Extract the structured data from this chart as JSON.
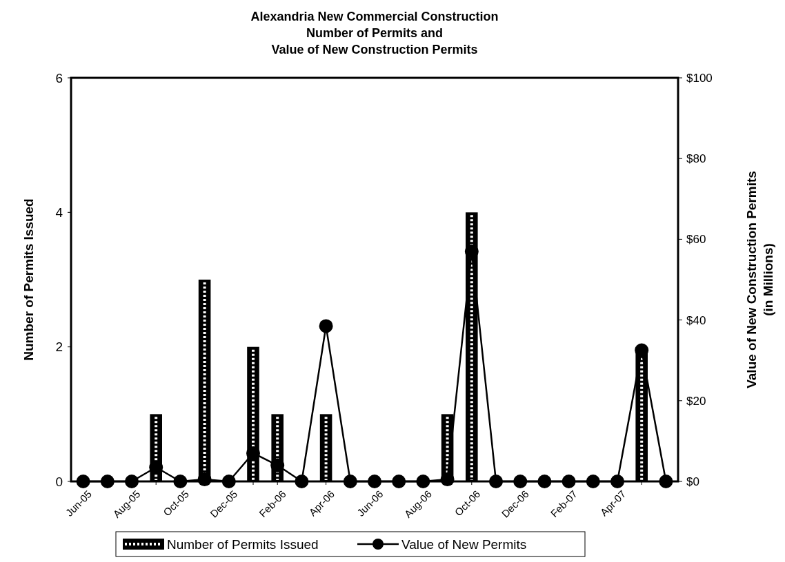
{
  "chart_data": {
    "type": "bar",
    "title": "Alexandria New Commercial Construction\nNumber of Permits and\nValue of New Construction Permits",
    "ylabel": "Number of Permits Issued",
    "y2label": "Value of New Construction Permits\n(in Millions)",
    "categories": [
      "Jun-05",
      null,
      "Aug-05",
      null,
      "Oct-05",
      null,
      "Dec-05",
      null,
      "Feb-06",
      null,
      "Apr-06",
      null,
      "Jun-06",
      null,
      "Aug-06",
      null,
      "Oct-06",
      null,
      "Dec-06",
      null,
      "Feb-07",
      null,
      "Apr-07",
      null,
      null
    ],
    "series": [
      {
        "name": "Number of Permits Issued",
        "color": "#000000",
        "values": [
          0,
          0,
          0,
          1,
          0,
          3,
          0,
          2,
          1,
          0,
          1,
          0,
          0,
          0,
          0,
          1,
          4,
          0,
          0,
          0,
          0,
          0,
          0,
          2,
          0
        ]
      },
      {
        "name": "Value of New Permits",
        "type": "line",
        "axis": "y2",
        "color": "#000000",
        "marker": "circle",
        "values": [
          0,
          0,
          0,
          3.5,
          0,
          0.5,
          0,
          7,
          4,
          0,
          38.5,
          0,
          0,
          0,
          0,
          0.5,
          57,
          0,
          0,
          0,
          0,
          0,
          0,
          32.5,
          0
        ]
      }
    ],
    "ylim": [
      0,
      6
    ],
    "yticks": [
      0,
      2,
      4,
      6
    ],
    "y2lim": [
      0,
      100
    ],
    "y2ticks": [
      {
        "value": 0,
        "label": "$0"
      },
      {
        "value": 20,
        "label": "$20"
      },
      {
        "value": 40,
        "label": "$40"
      },
      {
        "value": 60,
        "label": "$60"
      },
      {
        "value": 80,
        "label": "$80"
      },
      {
        "value": 100,
        "label": "$100"
      }
    ],
    "legend": "bottom",
    "grid": false
  }
}
